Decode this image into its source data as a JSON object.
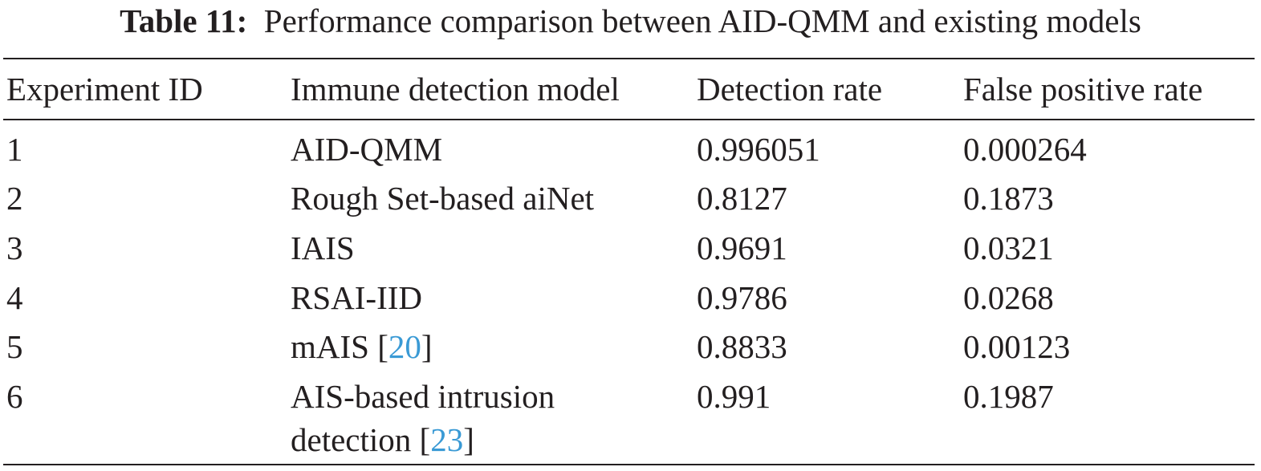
{
  "caption": {
    "label": "Table 11:",
    "text": "Performance comparison between AID-QMM and existing models"
  },
  "table": {
    "headers": [
      "Experiment ID",
      "Immune detection model",
      "Detection rate",
      "False positive rate"
    ],
    "rows": [
      {
        "id": "1",
        "model": "AID-QMM",
        "ref": "",
        "detection_rate": "0.996051",
        "false_positive_rate": "0.000264"
      },
      {
        "id": "2",
        "model": "Rough Set-based aiNet",
        "ref": "",
        "detection_rate": "0.8127",
        "false_positive_rate": "0.1873"
      },
      {
        "id": "3",
        "model": "IAIS",
        "ref": "",
        "detection_rate": "0.9691",
        "false_positive_rate": "0.0321"
      },
      {
        "id": "4",
        "model": "RSAI-IID",
        "ref": "",
        "detection_rate": "0.9786",
        "false_positive_rate": "0.0268"
      },
      {
        "id": "5",
        "model": "mAIS",
        "ref": "20",
        "detection_rate": "0.8833",
        "false_positive_rate": "0.00123"
      },
      {
        "id": "6",
        "model": "AIS-based intrusion",
        "model_line2": "detection",
        "ref": "23",
        "detection_rate": "0.991",
        "false_positive_rate": "0.1987"
      }
    ]
  },
  "colors": {
    "text": "#231f20",
    "reference_link": "#3a9ad5"
  }
}
